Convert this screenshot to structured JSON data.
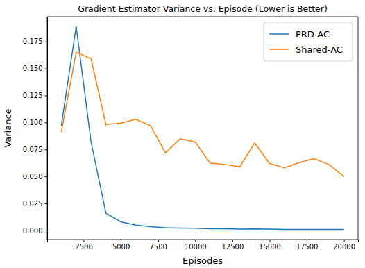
{
  "chart_data": {
    "type": "line",
    "title": "Gradient Estimator Variance vs. Episode (Lower is Better)",
    "x_label": "Episodes",
    "y_label": "Variance",
    "x": [
      1000,
      2000,
      3000,
      4000,
      5000,
      6000,
      7000,
      8000,
      9000,
      10000,
      11000,
      12000,
      13000,
      14000,
      15000,
      16000,
      17000,
      18000,
      19000,
      20000
    ],
    "series": [
      {
        "name": "PRD-AC",
        "color": "#1f77b4",
        "values": [
          0.097,
          0.189,
          0.082,
          0.016,
          0.008,
          0.005,
          0.0035,
          0.0025,
          0.0022,
          0.002,
          0.0015,
          0.0015,
          0.0012,
          0.0014,
          0.0012,
          0.001,
          0.001,
          0.001,
          0.0009,
          0.0009
        ]
      },
      {
        "name": "Shared-AC",
        "color": "#ff7f0e",
        "values": [
          0.091,
          0.165,
          0.159,
          0.098,
          0.0995,
          0.103,
          0.097,
          0.072,
          0.085,
          0.082,
          0.0625,
          0.061,
          0.059,
          0.081,
          0.062,
          0.058,
          0.063,
          0.0665,
          0.061,
          0.05
        ]
      }
    ],
    "xlim": [
      50,
      20950
    ],
    "xticks": [
      2500,
      5000,
      7500,
      10000,
      12500,
      15000,
      17500,
      20000
    ],
    "ylim": [
      -0.0084,
      0.198
    ],
    "yticks": [
      {
        "value": 0,
        "label": "0.000"
      },
      {
        "value": 0.025,
        "label": "0.025"
      },
      {
        "value": 0.05,
        "label": "0.050"
      },
      {
        "value": 0.075,
        "label": "0.075"
      },
      {
        "value": 0.1,
        "label": "0.100"
      },
      {
        "value": 0.125,
        "label": "0.125"
      },
      {
        "value": 0.15,
        "label": "0.150"
      },
      {
        "value": 0.175,
        "label": "0.175"
      }
    ],
    "legend": "upper-right",
    "grid": false
  }
}
